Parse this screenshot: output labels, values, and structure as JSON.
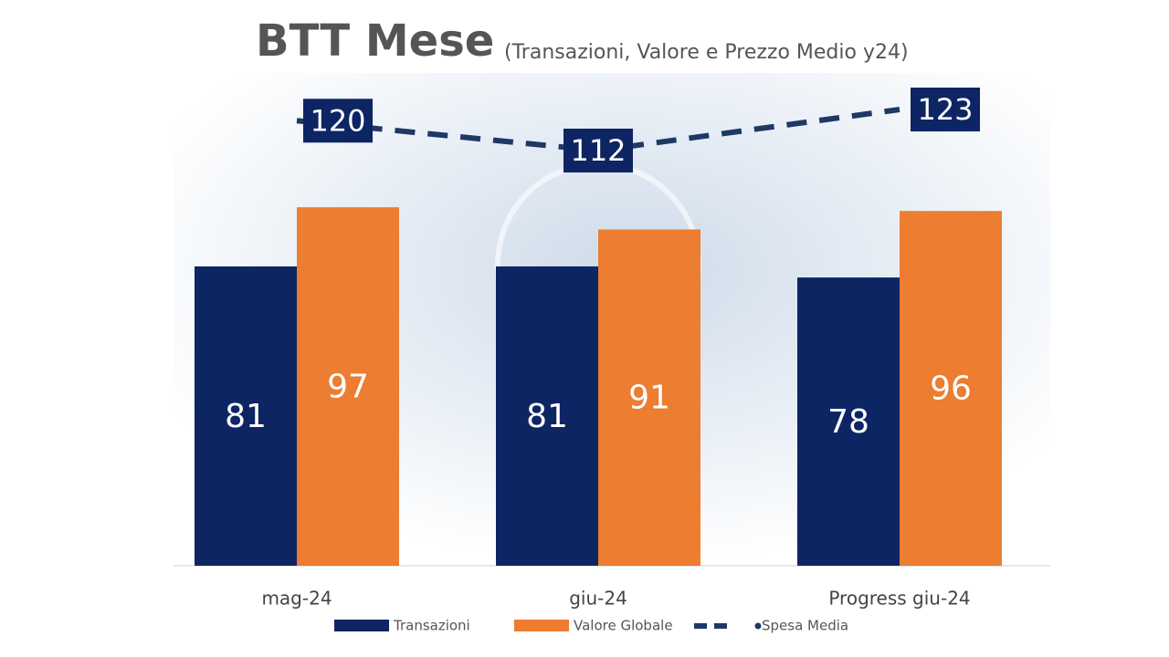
{
  "chart_data": {
    "type": "bar_line",
    "title": "BTT Mese",
    "subtitle": "(Transazioni, Valore e Prezzo Medio y24)",
    "categories": [
      "mag-24",
      "giu-24",
      "Progress giu-24"
    ],
    "series": [
      {
        "name": "Transazioni",
        "color": "#0e2564",
        "type": "bar",
        "values": [
          81,
          81,
          78
        ]
      },
      {
        "name": "Valore Globale",
        "color": "#ed7d31",
        "type": "bar",
        "values": [
          97,
          91,
          96
        ]
      },
      {
        "name": "Spesa Media",
        "color": "#1f3864",
        "type": "line",
        "axis": "y2",
        "values": [
          120,
          112,
          123
        ]
      }
    ]
  }
}
